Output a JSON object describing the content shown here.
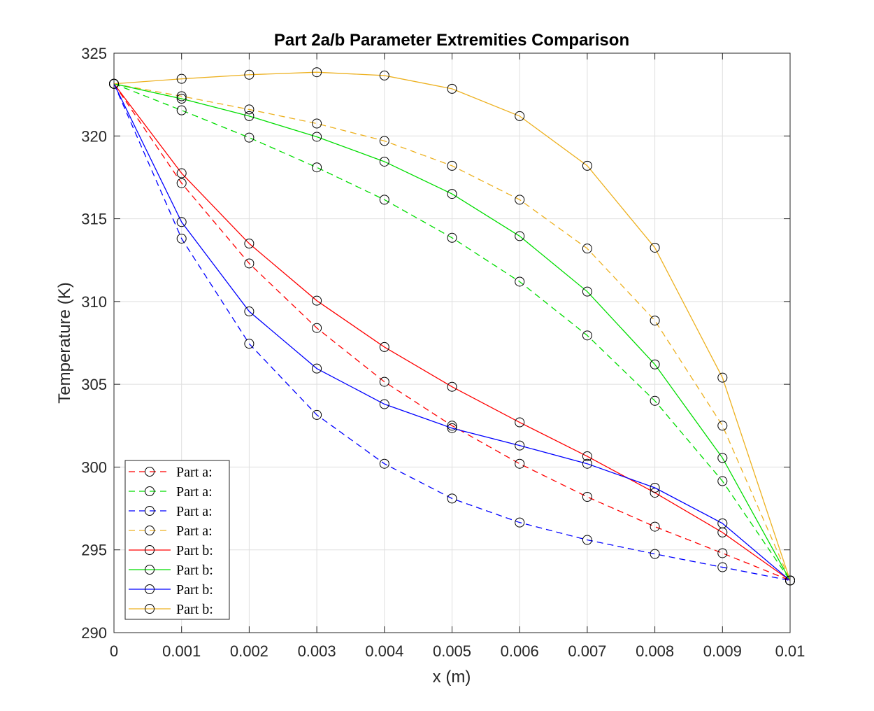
{
  "chart_data": {
    "type": "line",
    "title": "Part 2a/b Parameter Extremities Comparison",
    "xlabel": "x (m)",
    "ylabel": "Temperature (K)",
    "xlim": [
      0,
      0.01
    ],
    "ylim": [
      290,
      325
    ],
    "xticks": [
      0,
      0.001,
      0.002,
      0.003,
      0.004,
      0.005,
      0.006,
      0.007,
      0.008,
      0.009,
      0.01
    ],
    "xtick_labels": [
      "0",
      "0.001",
      "0.002",
      "0.003",
      "0.004",
      "0.005",
      "0.006",
      "0.007",
      "0.008",
      "0.009",
      "0.01"
    ],
    "yticks": [
      290,
      295,
      300,
      305,
      310,
      315,
      320,
      325
    ],
    "ytick_labels": [
      "290",
      "295",
      "300",
      "305",
      "310",
      "315",
      "320",
      "325"
    ],
    "grid": true,
    "legend_location": "bottom-left",
    "x": [
      0,
      0.001,
      0.002,
      0.003,
      0.004,
      0.005,
      0.006,
      0.007,
      0.008,
      0.009,
      0.01
    ],
    "series": [
      {
        "name": "Part a:",
        "color": "#ff0000",
        "dash": "dashed",
        "marker": "circle",
        "values": [
          323.15,
          317.15,
          312.3,
          308.4,
          305.15,
          302.5,
          300.2,
          298.2,
          296.4,
          294.8,
          293.15
        ]
      },
      {
        "name": "Part a:",
        "color": "#00dd00",
        "dash": "dashed",
        "marker": "circle",
        "values": [
          323.15,
          321.55,
          319.9,
          318.1,
          316.15,
          313.85,
          311.2,
          307.95,
          304.0,
          299.15,
          293.15
        ]
      },
      {
        "name": "Part a:",
        "color": "#0000ff",
        "dash": "dashed",
        "marker": "circle",
        "values": [
          323.15,
          313.8,
          307.45,
          303.15,
          300.2,
          298.1,
          296.65,
          295.6,
          294.75,
          293.95,
          293.15
        ]
      },
      {
        "name": "Part a:",
        "color": "#edb120",
        "dash": "dashed",
        "marker": "circle",
        "values": [
          323.15,
          322.4,
          321.6,
          320.75,
          319.7,
          318.2,
          316.15,
          313.2,
          308.85,
          302.5,
          293.15
        ]
      },
      {
        "name": "Part b:",
        "color": "#ff0000",
        "dash": "solid",
        "marker": "circle",
        "values": [
          323.15,
          317.75,
          313.5,
          310.05,
          307.25,
          304.85,
          302.7,
          300.65,
          298.45,
          296.05,
          293.15
        ]
      },
      {
        "name": "Part b:",
        "color": "#00dd00",
        "dash": "solid",
        "marker": "circle",
        "values": [
          323.15,
          322.25,
          321.2,
          319.95,
          318.45,
          316.5,
          313.95,
          310.6,
          306.2,
          300.55,
          293.15
        ]
      },
      {
        "name": "Part b:",
        "color": "#0000ff",
        "dash": "solid",
        "marker": "circle",
        "values": [
          323.15,
          314.8,
          309.4,
          305.95,
          303.8,
          302.35,
          301.3,
          300.2,
          298.75,
          296.6,
          293.15
        ]
      },
      {
        "name": "Part b:",
        "color": "#edb120",
        "dash": "solid",
        "marker": "circle",
        "values": [
          323.15,
          323.45,
          323.7,
          323.85,
          323.65,
          322.85,
          321.2,
          318.2,
          313.25,
          305.4,
          293.15
        ]
      }
    ]
  }
}
